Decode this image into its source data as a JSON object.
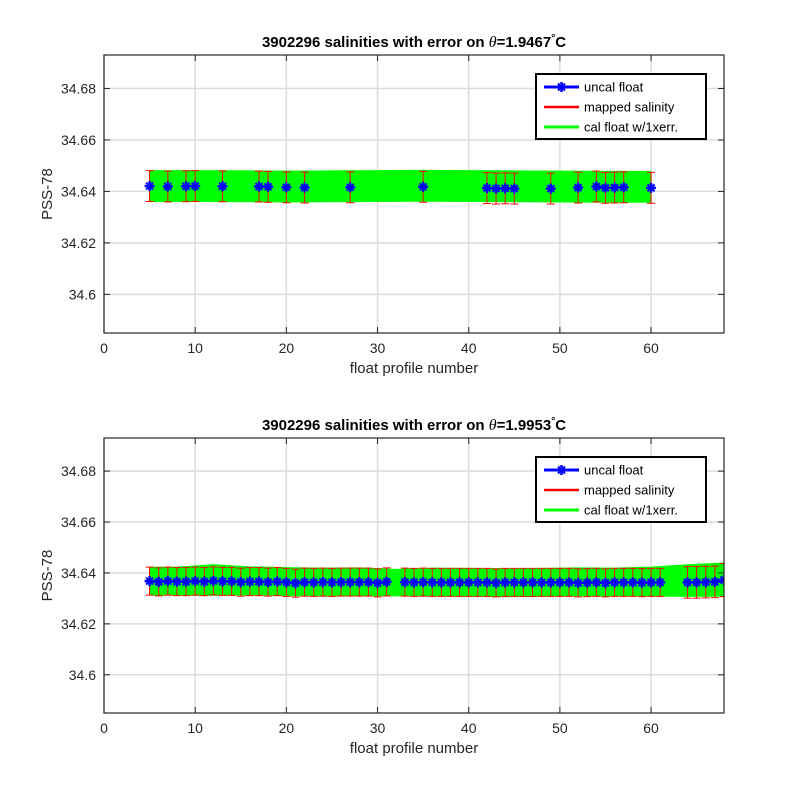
{
  "chart_data": [
    {
      "type": "line",
      "title": {
        "prefix": "3902296 salinities with error on ",
        "theta": "θ",
        "value": "=1.9467",
        "degree": "°",
        "unit": "C"
      },
      "xlabel": "float profile number",
      "ylabel": "PSS-78",
      "xlim": [
        0,
        68
      ],
      "ylim": [
        34.585,
        34.693
      ],
      "xticks": [
        0,
        10,
        20,
        30,
        40,
        50,
        60
      ],
      "yticks": [
        34.6,
        34.62,
        34.64,
        34.66,
        34.68
      ],
      "yticklabels": [
        "34.6",
        "34.62",
        "34.64",
        "34.66",
        "34.68"
      ],
      "grid": true,
      "legend": {
        "position": "top-right",
        "entries": [
          "uncal float",
          "mapped salinity",
          "cal float w/1xerr."
        ]
      },
      "colors": {
        "uncal": "#0000ff",
        "mapped": "#ff0000",
        "cal": "#00ff00"
      },
      "series": [
        {
          "name": "uncal float",
          "x": [
            5,
            7,
            9,
            10,
            13,
            17,
            18,
            20,
            22,
            27,
            35,
            42,
            43,
            44,
            45,
            49,
            52,
            54,
            55,
            56,
            57,
            60
          ],
          "y": [
            34.6421,
            34.6419,
            34.642,
            34.6421,
            34.642,
            34.6419,
            34.6418,
            34.6416,
            34.6415,
            34.6416,
            34.6418,
            34.6413,
            34.6411,
            34.6412,
            34.6411,
            34.6411,
            34.6415,
            34.6419,
            34.6414,
            34.6415,
            34.6416,
            34.6414
          ],
          "err": [
            0.006,
            0.006,
            0.006,
            0.006,
            0.006,
            0.006,
            0.006,
            0.006,
            0.006,
            0.006,
            0.006,
            0.006,
            0.006,
            0.006,
            0.006,
            0.006,
            0.006,
            0.006,
            0.006,
            0.006,
            0.006,
            0.006
          ]
        },
        {
          "name": "mapped salinity",
          "x": [
            5,
            7,
            9,
            10,
            13,
            17,
            18,
            20,
            22,
            27,
            35,
            42,
            43,
            44,
            45,
            49,
            52,
            54,
            55,
            56,
            57,
            60
          ],
          "y": [
            34.6421,
            34.6419,
            34.642,
            34.6421,
            34.642,
            34.6419,
            34.6418,
            34.6416,
            34.6415,
            34.6416,
            34.6418,
            34.6413,
            34.6411,
            34.6412,
            34.6411,
            34.6411,
            34.6415,
            34.6419,
            34.6414,
            34.6415,
            34.6416,
            34.6414
          ]
        },
        {
          "name": "cal float w/1xerr.",
          "x": [
            5,
            10,
            20,
            30,
            35,
            40,
            45,
            50,
            55,
            60
          ],
          "y": [
            34.6421,
            34.6421,
            34.6419,
            34.6421,
            34.6422,
            34.6421,
            34.642,
            34.6419,
            34.6418,
            34.6418
          ],
          "err": [
            0.006,
            0.006,
            0.006,
            0.006,
            0.006,
            0.006,
            0.006,
            0.006,
            0.006,
            0.006
          ]
        }
      ]
    },
    {
      "type": "line",
      "title": {
        "prefix": "3902296 salinities with error on ",
        "theta": "θ",
        "value": "=1.9953",
        "degree": "°",
        "unit": "C"
      },
      "xlabel": "float profile number",
      "ylabel": "PSS-78",
      "xlim": [
        0,
        68
      ],
      "ylim": [
        34.585,
        34.693
      ],
      "xticks": [
        0,
        10,
        20,
        30,
        40,
        50,
        60
      ],
      "yticks": [
        34.6,
        34.62,
        34.64,
        34.66,
        34.68
      ],
      "yticklabels": [
        "34.6",
        "34.62",
        "34.64",
        "34.66",
        "34.68"
      ],
      "grid": true,
      "legend": {
        "position": "top-right",
        "entries": [
          "uncal float",
          "mapped salinity",
          "cal float w/1xerr."
        ]
      },
      "colors": {
        "uncal": "#0000ff",
        "mapped": "#ff0000",
        "cal": "#00ff00"
      },
      "series": [
        {
          "name": "uncal float",
          "x": [
            5,
            6,
            7,
            8,
            9,
            10,
            11,
            12,
            13,
            14,
            15,
            16,
            17,
            18,
            19,
            20,
            21,
            22,
            23,
            24,
            25,
            26,
            27,
            28,
            29,
            30,
            31,
            33,
            34,
            35,
            36,
            37,
            38,
            39,
            40,
            41,
            42,
            43,
            44,
            45,
            46,
            47,
            48,
            49,
            50,
            51,
            52,
            53,
            54,
            55,
            56,
            57,
            58,
            59,
            60,
            61,
            64,
            65,
            66,
            67,
            68
          ],
          "y": [
            34.6368,
            34.6365,
            34.6368,
            34.6366,
            34.6366,
            34.6368,
            34.6366,
            34.6369,
            34.6367,
            34.6367,
            34.6364,
            34.6366,
            34.6366,
            34.6364,
            34.6366,
            34.6363,
            34.636,
            34.6364,
            34.6363,
            34.6364,
            34.6363,
            34.6364,
            34.6364,
            34.6364,
            34.6364,
            34.6361,
            34.6365,
            34.6364,
            34.6363,
            34.6364,
            34.6363,
            34.6363,
            34.6363,
            34.6363,
            34.6363,
            34.6363,
            34.6363,
            34.6361,
            34.6363,
            34.6363,
            34.6363,
            34.6363,
            34.6363,
            34.6363,
            34.6363,
            34.6363,
            34.6361,
            34.6362,
            34.6363,
            34.6361,
            34.6363,
            34.6363,
            34.6363,
            34.6362,
            34.6363,
            34.6363,
            34.6363,
            34.6363,
            34.6364,
            34.6365,
            34.6372
          ],
          "err": [
            0.0055,
            0.0055,
            0.0055,
            0.0055,
            0.0055,
            0.0055,
            0.0055,
            0.0055,
            0.0055,
            0.0055,
            0.0055,
            0.0055,
            0.0055,
            0.0055,
            0.0055,
            0.0055,
            0.0055,
            0.0055,
            0.0055,
            0.0055,
            0.0055,
            0.0055,
            0.0055,
            0.0055,
            0.0055,
            0.0055,
            0.0055,
            0.0055,
            0.0055,
            0.0055,
            0.0055,
            0.0055,
            0.0055,
            0.0055,
            0.0055,
            0.0055,
            0.0055,
            0.0055,
            0.0055,
            0.0055,
            0.0055,
            0.0055,
            0.0055,
            0.0055,
            0.0055,
            0.0055,
            0.0055,
            0.0055,
            0.0055,
            0.0055,
            0.0055,
            0.0055,
            0.0055,
            0.0055,
            0.0055,
            0.0055,
            0.0062,
            0.0062,
            0.0062,
            0.0062,
            0.0065
          ]
        },
        {
          "name": "mapped salinity",
          "x": [
            5,
            6,
            7,
            8,
            9,
            10,
            11,
            12,
            13,
            14,
            15,
            16,
            17,
            18,
            19,
            20,
            21,
            22,
            23,
            24,
            25,
            26,
            27,
            28,
            29,
            30,
            31,
            33,
            34,
            35,
            36,
            37,
            38,
            39,
            40,
            41,
            42,
            43,
            44,
            45,
            46,
            47,
            48,
            49,
            50,
            51,
            52,
            53,
            54,
            55,
            56,
            57,
            58,
            59,
            60,
            61,
            64,
            65,
            66,
            67,
            68
          ],
          "y": [
            34.6368,
            34.6365,
            34.6368,
            34.6366,
            34.6366,
            34.6368,
            34.6366,
            34.6369,
            34.6367,
            34.6367,
            34.6364,
            34.6366,
            34.6366,
            34.6364,
            34.6366,
            34.6363,
            34.636,
            34.6364,
            34.6363,
            34.6364,
            34.6363,
            34.6364,
            34.6364,
            34.6364,
            34.6364,
            34.6361,
            34.6365,
            34.6364,
            34.6363,
            34.6364,
            34.6363,
            34.6363,
            34.6363,
            34.6363,
            34.6363,
            34.6363,
            34.6363,
            34.6361,
            34.6363,
            34.6363,
            34.6363,
            34.6363,
            34.6363,
            34.6363,
            34.6363,
            34.6363,
            34.6361,
            34.6362,
            34.6363,
            34.6361,
            34.6363,
            34.6363,
            34.6363,
            34.6362,
            34.6363,
            34.6363,
            34.6363,
            34.6363,
            34.6364,
            34.6365,
            34.6372
          ]
        },
        {
          "name": "cal float w/1xerr.",
          "x": [
            5,
            8,
            12,
            16,
            20,
            24,
            28,
            32,
            36,
            40,
            44,
            48,
            52,
            56,
            60,
            64,
            68
          ],
          "y": [
            34.6368,
            34.6368,
            34.6372,
            34.6369,
            34.6366,
            34.6364,
            34.6365,
            34.6362,
            34.6364,
            34.6363,
            34.6362,
            34.6363,
            34.6365,
            34.6364,
            34.6366,
            34.637,
            34.6374
          ],
          "err": [
            0.0055,
            0.0055,
            0.006,
            0.0055,
            0.0055,
            0.0055,
            0.0055,
            0.0052,
            0.0055,
            0.0055,
            0.0055,
            0.0055,
            0.0055,
            0.0055,
            0.0057,
            0.0062,
            0.0065
          ]
        }
      ]
    }
  ]
}
